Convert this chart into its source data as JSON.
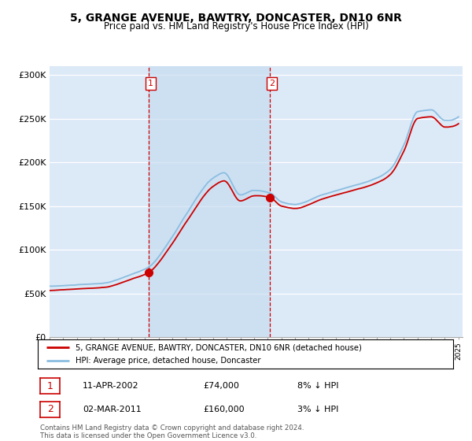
{
  "title": "5, GRANGE AVENUE, BAWTRY, DONCASTER, DN10 6NR",
  "subtitle": "Price paid vs. HM Land Registry's House Price Index (HPI)",
  "legend_line1": "5, GRANGE AVENUE, BAWTRY, DONCASTER, DN10 6NR (detached house)",
  "legend_line2": "HPI: Average price, detached house, Doncaster",
  "annotation1_date": "11-APR-2002",
  "annotation1_price": "£74,000",
  "annotation1_hpi": "8% ↓ HPI",
  "annotation2_date": "02-MAR-2011",
  "annotation2_price": "£160,000",
  "annotation2_hpi": "3% ↓ HPI",
  "footer": "Contains HM Land Registry data © Crown copyright and database right 2024.\nThis data is licensed under the Open Government Licence v3.0.",
  "hpi_color": "#8bbde0",
  "price_color": "#cc0000",
  "vline_color": "#cc0000",
  "background_color": "#dce9f7",
  "shade_color": "#c8ddf0",
  "ylim": [
    0,
    310000
  ],
  "yticks": [
    0,
    50000,
    100000,
    150000,
    200000,
    250000,
    300000
  ],
  "ytick_labels": [
    "£0",
    "£50K",
    "£100K",
    "£150K",
    "£200K",
    "£250K",
    "£300K"
  ],
  "sale1_year": 2002.27,
  "sale1_price": 74000,
  "sale2_year": 2011.17,
  "sale2_price": 160000
}
